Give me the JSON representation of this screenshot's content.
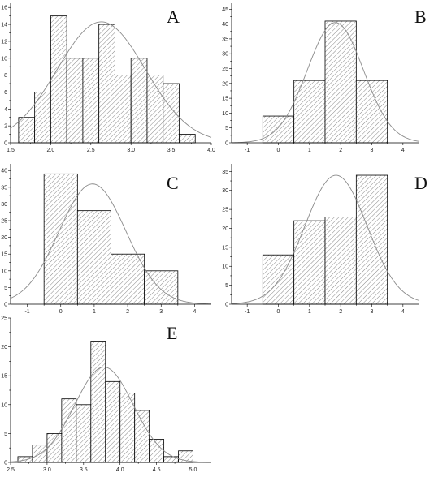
{
  "chart_data": [
    {
      "type": "bar",
      "letter": "A",
      "title": "",
      "xlabel": "",
      "ylabel": "",
      "bin_width": 0.2,
      "bin_centers": [
        1.7,
        1.9,
        2.1,
        2.3,
        2.5,
        2.7,
        2.9,
        3.1,
        3.3,
        3.5,
        3.7
      ],
      "values": [
        3,
        6,
        15,
        10,
        10,
        14,
        8,
        10,
        8,
        7,
        1
      ],
      "xlim": [
        1.5,
        4.0
      ],
      "ylim": [
        0,
        16.5
      ],
      "xticks": [
        1.5,
        2.0,
        2.5,
        3.0,
        3.5,
        4.0
      ],
      "xtick_labels": [
        "1.5",
        "2.0",
        "2.5",
        "3.0",
        "3.5",
        "4.0"
      ],
      "yticks": [
        0,
        2,
        4,
        6,
        8,
        10,
        12,
        14,
        16
      ],
      "ytick_labels": [
        "0",
        "2",
        "4",
        "6",
        "8",
        "10",
        "12",
        "14",
        "16"
      ],
      "normal_fit": {
        "mean": 2.63,
        "sd": 0.55,
        "peak": 14.3
      },
      "grid": false
    },
    {
      "type": "bar",
      "letter": "B",
      "title": "",
      "xlabel": "",
      "ylabel": "",
      "bin_width": 1,
      "bin_centers": [
        0,
        1,
        2,
        3
      ],
      "values": [
        9,
        21,
        41,
        21
      ],
      "xlim": [
        -1.5,
        4.5
      ],
      "ylim": [
        0,
        47
      ],
      "xticks": [
        -1,
        0,
        1,
        2,
        3,
        4
      ],
      "xtick_labels": [
        "-1",
        "0",
        "1",
        "2",
        "3",
        "4"
      ],
      "yticks": [
        0,
        5,
        10,
        15,
        20,
        25,
        30,
        35,
        40,
        45
      ],
      "ytick_labels": [
        "0",
        "5",
        "10",
        "15",
        "20",
        "25",
        "30",
        "35",
        "40",
        "45"
      ],
      "normal_fit": {
        "mean": 1.83,
        "sd": 0.9,
        "peak": 40.5
      },
      "grid": false
    },
    {
      "type": "bar",
      "letter": "C",
      "title": "",
      "xlabel": "",
      "ylabel": "",
      "bin_width": 1,
      "bin_centers": [
        0,
        1,
        2,
        3
      ],
      "values": [
        39,
        28,
        15,
        10
      ],
      "xlim": [
        -1.5,
        4.5
      ],
      "ylim": [
        0,
        42
      ],
      "xticks": [
        -1,
        0,
        1,
        2,
        3,
        4
      ],
      "xtick_labels": [
        "-1",
        "0",
        "1",
        "2",
        "3",
        "4"
      ],
      "yticks": [
        0,
        5,
        10,
        15,
        20,
        25,
        30,
        35,
        40
      ],
      "ytick_labels": [
        "0",
        "5",
        "10",
        "15",
        "20",
        "25",
        "30",
        "35",
        "40"
      ],
      "normal_fit": {
        "mean": 0.95,
        "sd": 1.0,
        "peak": 36
      },
      "grid": false
    },
    {
      "type": "bar",
      "letter": "D",
      "title": "",
      "xlabel": "",
      "ylabel": "",
      "bin_width": 1,
      "bin_centers": [
        0,
        1,
        2,
        3
      ],
      "values": [
        13,
        22,
        23,
        34
      ],
      "xlim": [
        -1.5,
        4.5
      ],
      "ylim": [
        0,
        37
      ],
      "xticks": [
        -1,
        0,
        1,
        2,
        3,
        4
      ],
      "xtick_labels": [
        "-1",
        "0",
        "1",
        "2",
        "3",
        "4"
      ],
      "yticks": [
        0,
        5,
        10,
        15,
        20,
        25,
        30,
        35
      ],
      "ytick_labels": [
        "0",
        "5",
        "10",
        "15",
        "20",
        "25",
        "30",
        "35"
      ],
      "normal_fit": {
        "mean": 1.85,
        "sd": 1.0,
        "peak": 34
      },
      "grid": false
    },
    {
      "type": "bar",
      "letter": "E",
      "title": "",
      "xlabel": "",
      "ylabel": "",
      "bin_width": 0.2,
      "bin_centers": [
        2.7,
        2.9,
        3.1,
        3.3,
        3.5,
        3.7,
        3.9,
        4.1,
        4.3,
        4.5,
        4.7,
        4.9
      ],
      "values": [
        1,
        3,
        5,
        11,
        10,
        21,
        14,
        12,
        9,
        4,
        1,
        2
      ],
      "xlim": [
        2.5,
        5.25
      ],
      "ylim": [
        0,
        25
      ],
      "xticks": [
        2.5,
        3.0,
        3.5,
        4.0,
        4.5,
        5.0
      ],
      "xtick_labels": [
        "2.5",
        "3.0",
        "3.5",
        "4.0",
        "4.5",
        "5.0"
      ],
      "yticks": [
        0,
        5,
        10,
        15,
        20,
        25
      ],
      "ytick_labels": [
        "0",
        "5",
        "10",
        "15",
        "20",
        "25"
      ],
      "normal_fit": {
        "mean": 3.78,
        "sd": 0.4,
        "peak": 16.5
      },
      "grid": false
    }
  ],
  "colors": {
    "bar_edge": "#000000",
    "hatch": "#555555",
    "fit_curve": "#8a8a8a",
    "background": "#ffffff"
  }
}
